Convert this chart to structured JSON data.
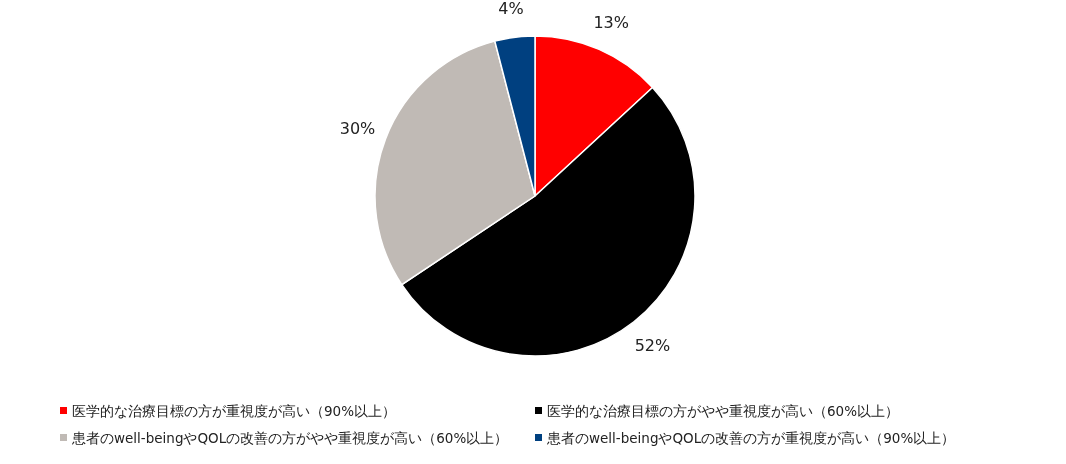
{
  "chart_data": {
    "type": "pie",
    "categories": [
      "医学的な治療目標の方が重視度が高い（90%以上）",
      "医学的な治療目標の方がやや重視度が高い（60%以上）",
      "患者のwell-beingやQOLの改善の方がやや重視度が高い（60%以上）",
      "患者のwell-beingやQOLの改善の方が重視度が高い（90%以上）"
    ],
    "values": [
      13,
      52,
      30,
      4
    ],
    "value_labels": [
      "13%",
      "52%",
      "30%",
      "4%"
    ],
    "colors": [
      "#ff0000",
      "#000000",
      "#c0bab5",
      "#004080"
    ],
    "legend": "bottom"
  }
}
